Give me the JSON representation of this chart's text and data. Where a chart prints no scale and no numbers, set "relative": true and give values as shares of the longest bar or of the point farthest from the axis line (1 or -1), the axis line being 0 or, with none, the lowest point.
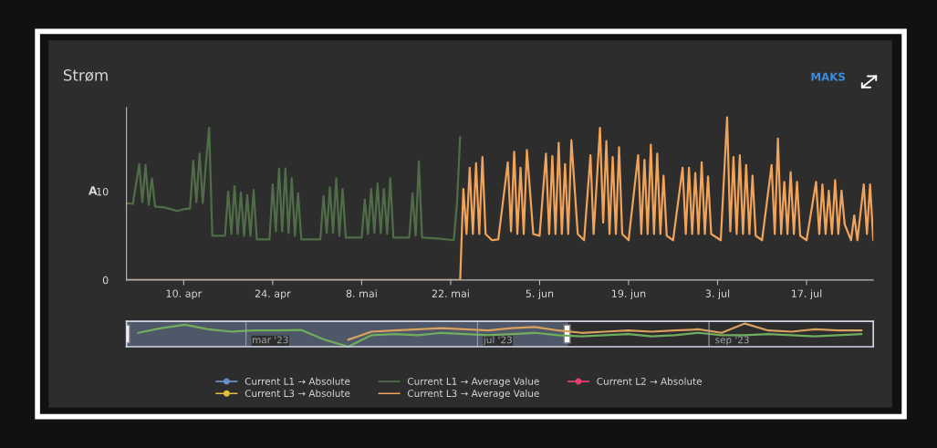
{
  "chart_data": [
    {
      "type": "line",
      "title": "Strøm",
      "ylabel": "A",
      "annotations": [
        "MAKS"
      ],
      "xlim": [
        "2023-04-01",
        "2023-07-27T12:00"
      ],
      "xticks": [
        {
          "value": "2023-04-10",
          "label": "10. apr"
        },
        {
          "value": "2023-04-24",
          "label": "24. apr"
        },
        {
          "value": "2023-05-08",
          "label": "8. mai"
        },
        {
          "value": "2023-05-22",
          "label": "22. mai"
        },
        {
          "value": "2023-06-05",
          "label": "5. jun"
        },
        {
          "value": "2023-06-19",
          "label": "19. jun"
        },
        {
          "value": "2023-07-03",
          "label": "3. jul"
        },
        {
          "value": "2023-07-17",
          "label": "17. jul"
        }
      ],
      "ylim": [
        0,
        19.5
      ],
      "yticks": [
        0,
        10
      ],
      "grid": false,
      "legend": "bottom",
      "series": [
        {
          "name": "Current L1 → Absolute",
          "color": "#6a8fc8",
          "marker": "circle"
        },
        {
          "name": "Current L1 → Average Value",
          "color": "#4f6e48",
          "x": [
            "2023-04-01",
            "2023-04-02",
            "2023-04-03",
            "2023-04-03T12:00",
            "2023-04-04",
            "2023-04-04T12:00",
            "2023-04-05",
            "2023-04-05T12:00",
            "2023-04-07",
            "2023-04-09",
            "2023-04-10",
            "2023-04-11",
            "2023-04-11T12:00",
            "2023-04-12",
            "2023-04-12T12:00",
            "2023-04-13",
            "2023-04-13T12:00",
            "2023-04-14",
            "2023-04-14T12:00",
            "2023-04-16T12:00",
            "2023-04-17",
            "2023-04-17T12:00",
            "2023-04-18",
            "2023-04-18T12:00",
            "2023-04-19",
            "2023-04-19T12:00",
            "2023-04-20",
            "2023-04-20T12:00",
            "2023-04-21",
            "2023-04-21T12:00",
            "2023-04-23T12:00",
            "2023-04-24",
            "2023-04-24T12:00",
            "2023-04-25",
            "2023-04-25T12:00",
            "2023-04-26",
            "2023-04-26T12:00",
            "2023-04-27",
            "2023-04-27T12:00",
            "2023-04-28",
            "2023-04-28T12:00",
            "2023-05-01T12:00",
            "2023-05-02",
            "2023-05-02T12:00",
            "2023-05-03",
            "2023-05-03T12:00",
            "2023-05-04",
            "2023-05-04T12:00",
            "2023-05-05",
            "2023-05-05T12:00",
            "2023-05-08",
            "2023-05-08T12:00",
            "2023-05-09",
            "2023-05-09T12:00",
            "2023-05-10",
            "2023-05-10T12:00",
            "2023-05-11",
            "2023-05-11T12:00",
            "2023-05-12",
            "2023-05-12T12:00",
            "2023-05-13",
            "2023-05-15T12:00",
            "2023-05-16",
            "2023-05-16T12:00",
            "2023-05-17",
            "2023-05-17T12:00",
            "2023-05-20",
            "2023-05-22T12:00",
            "2023-05-23",
            "2023-05-23T12:00"
          ],
          "values": [
            8.7,
            8.6,
            13.1,
            8.8,
            13.0,
            8.5,
            11.5,
            8.3,
            8.2,
            7.8,
            8.0,
            8.1,
            13.5,
            8.8,
            14.3,
            8.7,
            13.2,
            17.2,
            5.0,
            5.0,
            10.0,
            5.2,
            10.6,
            5.2,
            9.9,
            5.0,
            9.6,
            5.0,
            10.2,
            4.6,
            4.6,
            10.8,
            5.5,
            12.6,
            5.5,
            12.6,
            5.3,
            11.5,
            5.0,
            9.8,
            4.6,
            4.6,
            9.5,
            5.3,
            10.5,
            5.3,
            11.5,
            5.0,
            10.3,
            4.8,
            4.8,
            9.1,
            5.2,
            10.3,
            5.3,
            10.9,
            5.3,
            10.3,
            5.2,
            11.5,
            4.8,
            4.8,
            9.8,
            5.0,
            13.4,
            4.8,
            4.7,
            4.5,
            8.7,
            16.2
          ]
        },
        {
          "name": "Current L2 → Absolute",
          "color": "#e04070",
          "marker": "circle"
        },
        {
          "name": "Current L3 → Absolute",
          "color": "#e0c040",
          "marker": "circle"
        },
        {
          "name": "Current L3 → Average Value",
          "color": "#f2a35a",
          "x": [
            "2023-04-01",
            "2023-05-23T12:00",
            "2023-05-24",
            "2023-05-24T12:00",
            "2023-05-25",
            "2023-05-25T12:00",
            "2023-05-26",
            "2023-05-26T12:00",
            "2023-05-27",
            "2023-05-27T12:00",
            "2023-05-28T12:00",
            "2023-05-29T12:00",
            "2023-05-31",
            "2023-05-31T12:00",
            "2023-06-01",
            "2023-06-01T12:00",
            "2023-06-02",
            "2023-06-02T12:00",
            "2023-06-03",
            "2023-06-04",
            "2023-06-05",
            "2023-06-06",
            "2023-06-06T12:00",
            "2023-06-07",
            "2023-06-07T12:00",
            "2023-06-08",
            "2023-06-08T12:00",
            "2023-06-09",
            "2023-06-09T12:00",
            "2023-06-10",
            "2023-06-11",
            "2023-06-12",
            "2023-06-13",
            "2023-06-13T12:00",
            "2023-06-14T12:00",
            "2023-06-15",
            "2023-06-15T12:00",
            "2023-06-16",
            "2023-06-16T12:00",
            "2023-06-17",
            "2023-06-17T12:00",
            "2023-06-18",
            "2023-06-19",
            "2023-06-20T12:00",
            "2023-06-21",
            "2023-06-21T12:00",
            "2023-06-22",
            "2023-06-22T12:00",
            "2023-06-23",
            "2023-06-23T12:00",
            "2023-06-24",
            "2023-06-24T12:00",
            "2023-06-25",
            "2023-06-26",
            "2023-06-27T12:00",
            "2023-06-28",
            "2023-06-28T12:00",
            "2023-06-29",
            "2023-06-29T12:00",
            "2023-06-30",
            "2023-06-30T12:00",
            "2023-07-01",
            "2023-07-01T12:00",
            "2023-07-02",
            "2023-07-03T12:00",
            "2023-07-04T12:00",
            "2023-07-05",
            "2023-07-05T12:00",
            "2023-07-06",
            "2023-07-06T12:00",
            "2023-07-07",
            "2023-07-07T12:00",
            "2023-07-08",
            "2023-07-08T12:00",
            "2023-07-09",
            "2023-07-10",
            "2023-07-11T12:00",
            "2023-07-12",
            "2023-07-12T12:00",
            "2023-07-13",
            "2023-07-13T12:00",
            "2023-07-14",
            "2023-07-14T12:00",
            "2023-07-15",
            "2023-07-15T12:00",
            "2023-07-16",
            "2023-07-17",
            "2023-07-18T12:00",
            "2023-07-19",
            "2023-07-19T12:00",
            "2023-07-20",
            "2023-07-20T12:00",
            "2023-07-21",
            "2023-07-21T12:00",
            "2023-07-22",
            "2023-07-22T12:00",
            "2023-07-23",
            "2023-07-24",
            "2023-07-24T12:00",
            "2023-07-25",
            "2023-07-26",
            "2023-07-26T12:00",
            "2023-07-27",
            "2023-07-27T12:00"
          ],
          "values": [
            0,
            0,
            10.3,
            5.2,
            12.7,
            5.2,
            13.2,
            5.2,
            13.9,
            5.2,
            4.5,
            4.6,
            13.3,
            5.5,
            14.5,
            5.2,
            12.7,
            5.2,
            14.7,
            5.2,
            5.0,
            14.3,
            5.2,
            14.0,
            5.2,
            15.5,
            5.2,
            13.1,
            5.2,
            15.8,
            5.2,
            4.5,
            14.1,
            5.2,
            17.2,
            6.5,
            15.7,
            5.2,
            13.9,
            5.2,
            15.0,
            5.2,
            4.5,
            14.1,
            5.2,
            13.6,
            5.2,
            15.3,
            5.2,
            14.3,
            5.2,
            11.8,
            5.0,
            4.5,
            12.7,
            5.2,
            12.7,
            5.2,
            12.1,
            5.2,
            13.3,
            5.2,
            11.7,
            5.2,
            4.5,
            18.4,
            5.5,
            13.9,
            5.2,
            14.1,
            5.2,
            13.0,
            5.2,
            11.8,
            5.0,
            4.5,
            13.0,
            5.2,
            16.0,
            5.2,
            11.1,
            5.2,
            12.2,
            5.2,
            11.1,
            5.0,
            4.5,
            11.1,
            5.2,
            10.8,
            5.2,
            10.1,
            5.2,
            11.3,
            5.2,
            10.1,
            6.3,
            4.5,
            7.3,
            4.5,
            10.8,
            5.2,
            10.8,
            4.5
          ]
        }
      ]
    },
    {
      "type": "line",
      "relative": true,
      "annotations": [
        "mar '23",
        "jul '23",
        "sep '23"
      ],
      "categories": [
        null,
        null,
        null,
        null,
        null,
        null,
        null,
        null,
        null,
        null,
        null,
        null,
        null,
        null,
        null,
        null,
        null,
        null,
        null,
        null,
        null,
        null,
        null,
        null,
        null,
        null,
        null,
        null,
        null,
        null,
        null,
        null
      ],
      "series": [
        {
          "color": "#6fae5f",
          "values": [
            0.6,
            0.8,
            0.95,
            0.75,
            0.65,
            0.7,
            0.7,
            0.72,
            0.3,
            0.0,
            0.5,
            0.55,
            0.5,
            0.6,
            0.55,
            0.5,
            0.55,
            0.6,
            0.5,
            0.45,
            0.5,
            0.55,
            0.45,
            0.5,
            0.6,
            0.5,
            0.5,
            0.55,
            0.5,
            0.45,
            0.5,
            0.55
          ]
        },
        {
          "color": "#d9a060",
          "values": [
            null,
            null,
            null,
            null,
            null,
            null,
            null,
            null,
            null,
            0.3,
            0.65,
            0.7,
            0.75,
            0.8,
            0.75,
            0.7,
            0.8,
            0.85,
            0.7,
            0.6,
            0.65,
            0.7,
            0.65,
            0.7,
            0.75,
            0.6,
            1.0,
            0.7,
            0.65,
            0.75,
            0.7,
            0.7
          ]
        }
      ]
    }
  ]
}
